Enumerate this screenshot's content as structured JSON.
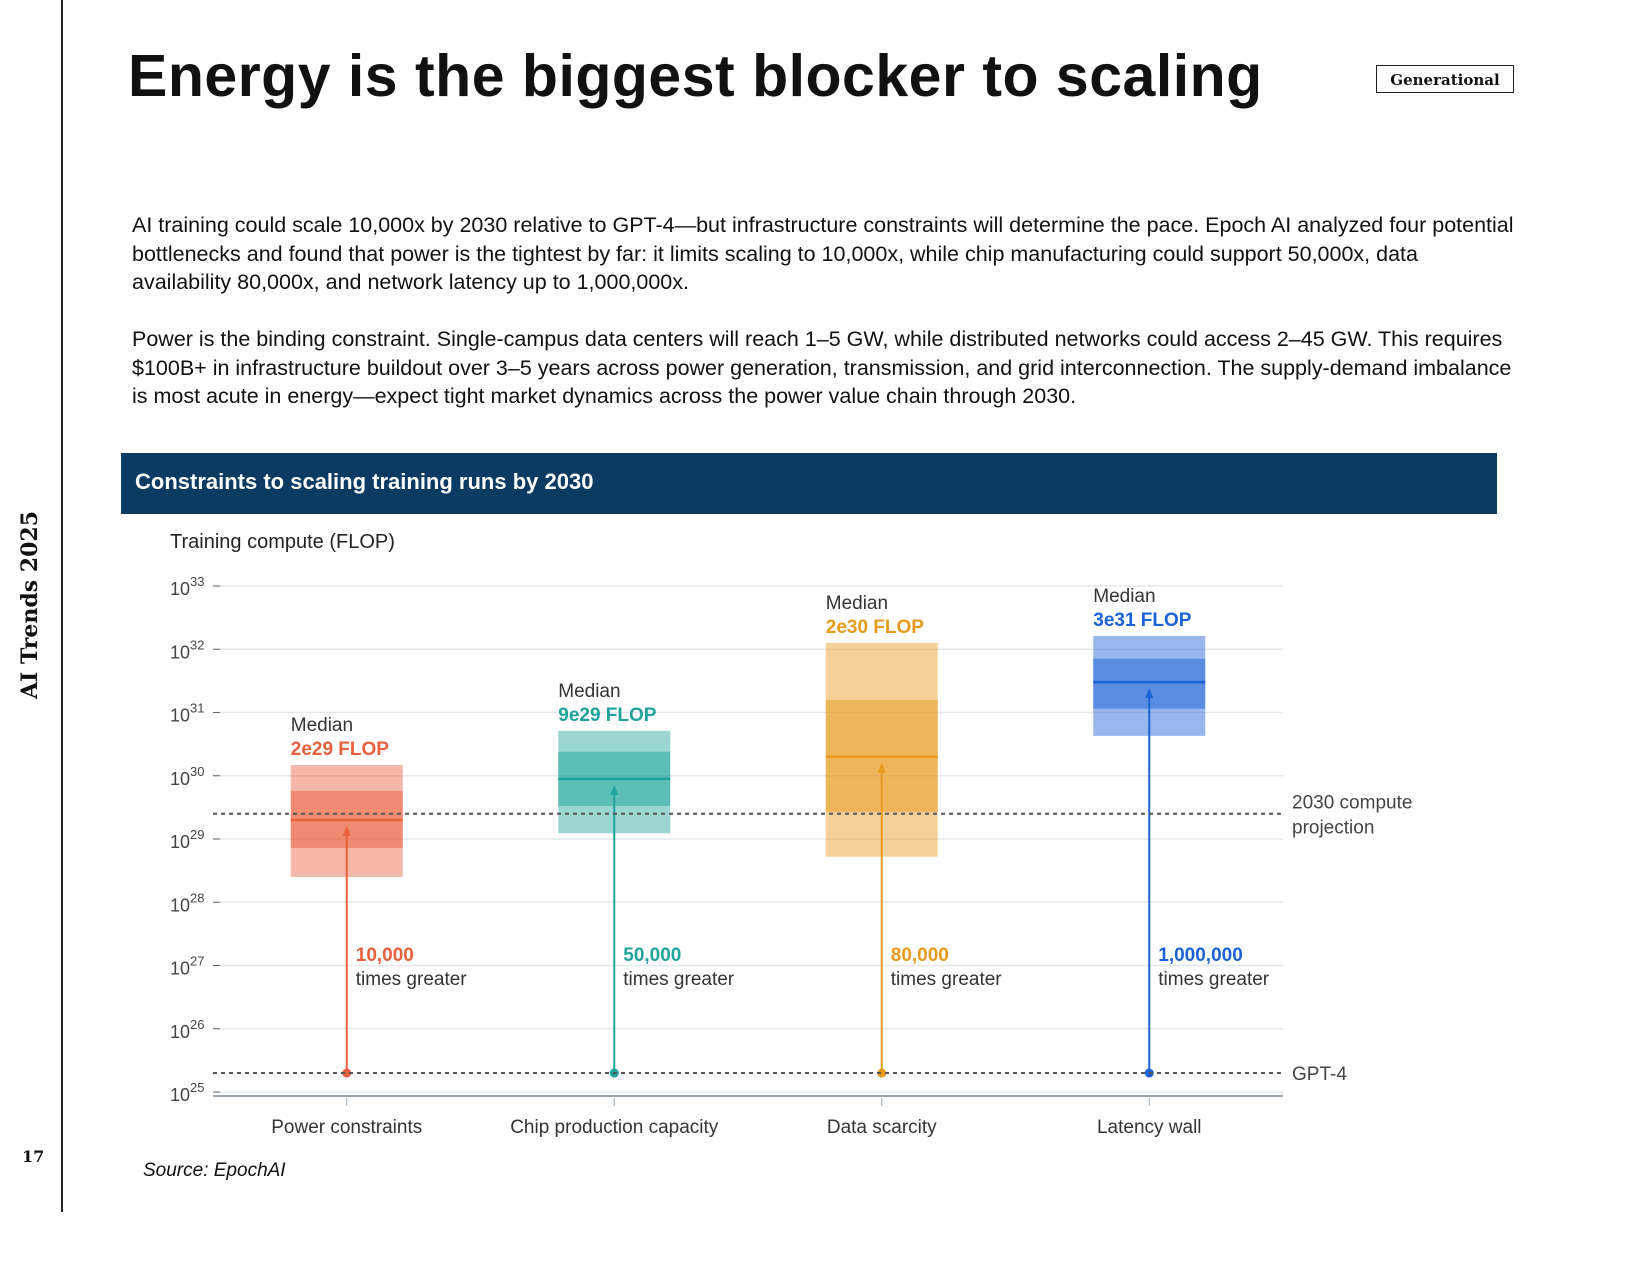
{
  "sidebar": {
    "label": "AI Trends 2025",
    "page_number": "17"
  },
  "header": {
    "title": "Energy is the biggest blocker to scaling",
    "tag": "Generational"
  },
  "body": {
    "p1": "AI training could scale 10,000x by 2030 relative to GPT-4—but infrastructure constraints will determine the pace. Epoch AI analyzed four potential bottlenecks and found that power is the tightest by far: it limits scaling to 10,000x, while chip manufacturing could support 50,000x, data availability 80,000x, and network latency up to 1,000,000x.",
    "p2": "Power is the binding constraint. Single-campus data centers will reach 1–5 GW, while distributed networks could access 2–45 GW. This requires $100B+ in infrastructure buildout over 3–5 years across power generation, transmission, and grid interconnection. The supply-demand imbalance is most acute in energy—expect tight market dynamics across the power value chain through 2030."
  },
  "chart_header": "Constraints to scaling training runs by 2030",
  "source": "Source: EpochAI",
  "chart_data": {
    "type": "box",
    "title": "Constraints to scaling training runs by 2030",
    "ylabel": "Training compute (FLOP)",
    "yscale": "log10",
    "ylim_exp": [
      25,
      33
    ],
    "ytick_exps": [
      25,
      26,
      27,
      28,
      29,
      30,
      31,
      32,
      33
    ],
    "grid": true,
    "reference_lines": [
      {
        "label": "2030 compute projection",
        "label_lines": [
          "2030 compute",
          "projection"
        ],
        "log10": 29.4
      },
      {
        "label": "GPT-4",
        "label_lines": [
          "GPT-4"
        ],
        "log10": 25.3
      }
    ],
    "median_caption": "Median",
    "times_caption": "times greater",
    "categories": [
      {
        "name": "Power constraints",
        "color": "#e8603c",
        "median_label": "2e29 FLOP",
        "median_log10": 29.3,
        "inner": [
          28.86,
          29.76
        ],
        "outer": [
          28.4,
          30.17
        ],
        "multiplier": "10,000"
      },
      {
        "name": "Chip production capacity",
        "color": "#1fa39c",
        "median_label": "9e29 FLOP",
        "median_log10": 29.95,
        "inner": [
          29.52,
          30.38
        ],
        "outer": [
          29.09,
          30.71
        ],
        "multiplier": "50,000"
      },
      {
        "name": "Data scarcity",
        "color": "#e89a1c",
        "median_label": "2e30 FLOP",
        "median_log10": 30.3,
        "inner": [
          29.43,
          31.2
        ],
        "outer": [
          28.72,
          32.1
        ],
        "multiplier": "80,000"
      },
      {
        "name": "Latency wall",
        "color": "#1a62d6",
        "median_label": "3e31 FLOP",
        "median_log10": 31.48,
        "inner": [
          31.06,
          31.85
        ],
        "outer": [
          30.63,
          32.21
        ],
        "multiplier": "1,000,000"
      }
    ]
  }
}
